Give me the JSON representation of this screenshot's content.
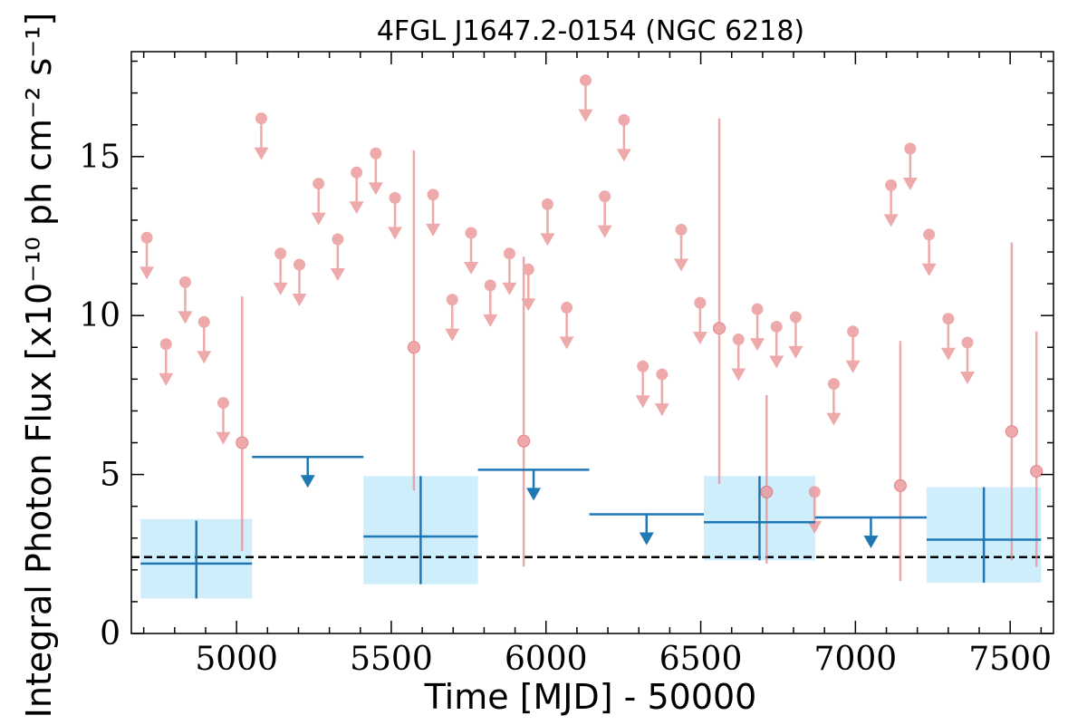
{
  "chart_data": {
    "type": "scatter",
    "title": "4FGL J1647.2-0154 (NGC 6218)",
    "xlabel": "Time [MJD] - 50000",
    "ylabel": "Integral Photon Flux [x10⁻¹⁰ ph cm⁻² s⁻¹]",
    "xlim": [
      4660,
      7640
    ],
    "ylim": [
      0,
      18.3
    ],
    "xticks": [
      5000,
      5500,
      6000,
      6500,
      7000,
      7500
    ],
    "yticks": [
      0,
      5,
      10,
      15
    ],
    "grid": false,
    "reference_level": 2.4,
    "colors": {
      "short_bins": "#e8898c",
      "long_bins": "#1f77b4",
      "error_box": "#cfeefc",
      "reference": "#000000"
    },
    "long_bins": {
      "detections": [
        {
          "x_start": 4690,
          "x_end": 5050,
          "y": 2.2,
          "y_low": 1.1,
          "y_high": 3.55,
          "box_low": 1.1,
          "box_high": 3.6
        },
        {
          "x_start": 5410,
          "x_end": 5780,
          "y": 3.05,
          "y_low": 1.55,
          "y_high": 4.95,
          "box_low": 1.55,
          "box_high": 4.95
        },
        {
          "x_start": 6510,
          "x_end": 6870,
          "y": 3.5,
          "y_low": 2.3,
          "y_high": 4.95,
          "box_low": 2.3,
          "box_high": 4.95
        },
        {
          "x_start": 7230,
          "x_end": 7600,
          "y": 2.95,
          "y_low": 1.6,
          "y_high": 4.6,
          "box_low": 1.6,
          "box_high": 4.6
        }
      ],
      "upper_limits": [
        {
          "x_start": 5050,
          "x_end": 5410,
          "y": 5.55
        },
        {
          "x_start": 5780,
          "x_end": 6140,
          "y": 5.15
        },
        {
          "x_start": 6140,
          "x_end": 6510,
          "y": 3.75
        },
        {
          "x_start": 6870,
          "x_end": 7230,
          "y": 3.65
        }
      ]
    },
    "short_bins": {
      "upper_limits": [
        {
          "x": 4710,
          "y": 12.45
        },
        {
          "x": 4772,
          "y": 9.1
        },
        {
          "x": 4834,
          "y": 11.05
        },
        {
          "x": 4895,
          "y": 9.8
        },
        {
          "x": 4957,
          "y": 7.25
        },
        {
          "x": 5080,
          "y": 16.2
        },
        {
          "x": 5142,
          "y": 11.95
        },
        {
          "x": 5203,
          "y": 11.6
        },
        {
          "x": 5265,
          "y": 14.15
        },
        {
          "x": 5327,
          "y": 12.4
        },
        {
          "x": 5388,
          "y": 14.5
        },
        {
          "x": 5450,
          "y": 15.1
        },
        {
          "x": 5512,
          "y": 13.7
        },
        {
          "x": 5635,
          "y": 13.8
        },
        {
          "x": 5697,
          "y": 10.5
        },
        {
          "x": 5758,
          "y": 12.6
        },
        {
          "x": 5820,
          "y": 10.95
        },
        {
          "x": 5882,
          "y": 11.95
        },
        {
          "x": 5943,
          "y": 11.45
        },
        {
          "x": 6005,
          "y": 13.5
        },
        {
          "x": 6067,
          "y": 10.25
        },
        {
          "x": 6128,
          "y": 17.4
        },
        {
          "x": 6190,
          "y": 13.75
        },
        {
          "x": 6252,
          "y": 16.15
        },
        {
          "x": 6313,
          "y": 8.4
        },
        {
          "x": 6375,
          "y": 8.15
        },
        {
          "x": 6437,
          "y": 12.7
        },
        {
          "x": 6498,
          "y": 10.4
        },
        {
          "x": 6622,
          "y": 9.25
        },
        {
          "x": 6683,
          "y": 10.2
        },
        {
          "x": 6745,
          "y": 9.65
        },
        {
          "x": 6807,
          "y": 9.95
        },
        {
          "x": 6868,
          "y": 4.45
        },
        {
          "x": 6930,
          "y": 7.85
        },
        {
          "x": 6992,
          "y": 9.5
        },
        {
          "x": 7115,
          "y": 14.1
        },
        {
          "x": 7177,
          "y": 15.25
        },
        {
          "x": 7238,
          "y": 12.55
        },
        {
          "x": 7300,
          "y": 9.9
        },
        {
          "x": 7362,
          "y": 9.15
        }
      ],
      "detections": [
        {
          "x": 5018,
          "y": 6.0,
          "y_low": 2.6,
          "y_high": 10.6
        },
        {
          "x": 5573,
          "y": 9.0,
          "y_low": 4.5,
          "y_high": 15.2
        },
        {
          "x": 5928,
          "y": 6.05,
          "y_low": 2.1,
          "y_high": 11.85
        },
        {
          "x": 6560,
          "y": 9.6,
          "y_low": 4.7,
          "y_high": 16.2
        },
        {
          "x": 6713,
          "y": 4.45,
          "y_low": 2.2,
          "y_high": 7.5
        },
        {
          "x": 7145,
          "y": 4.65,
          "y_low": 1.65,
          "y_high": 9.2
        },
        {
          "x": 7505,
          "y": 6.35,
          "y_low": 2.3,
          "y_high": 12.3
        },
        {
          "x": 7585,
          "y": 5.1,
          "y_low": 2.1,
          "y_high": 9.5
        }
      ]
    }
  }
}
